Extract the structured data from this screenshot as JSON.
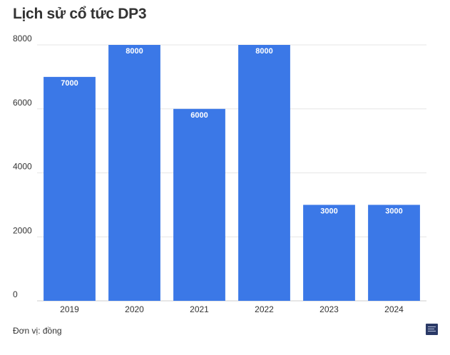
{
  "title": "Lịch sử cổ tức DP3",
  "unit_note": "Đơn vị: đồng",
  "colors": {
    "bar": "#3b78e7",
    "grid": "#e6e6e6",
    "axis": "#cccccc",
    "text": "#333333",
    "logo": "#2b3a67"
  },
  "chart_data": {
    "type": "bar",
    "categories": [
      "2019",
      "2020",
      "2021",
      "2022",
      "2023",
      "2024"
    ],
    "values": [
      7000,
      8000,
      6000,
      8000,
      3000,
      3000
    ],
    "title": "Lịch sử cổ tức DP3",
    "xlabel": "",
    "ylabel": "",
    "ylim": [
      0,
      8000
    ],
    "yticks": [
      0,
      2000,
      4000,
      6000,
      8000
    ],
    "grid": true,
    "data_labels": true
  }
}
